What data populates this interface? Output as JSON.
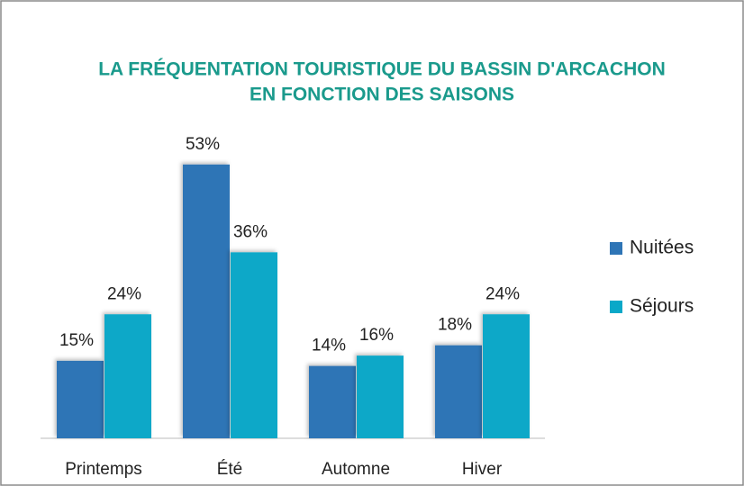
{
  "chart_data": {
    "type": "bar",
    "title": [
      "LA FRÉQUENTATION TOURISTIQUE DU BASSIN D'ARCACHON",
      "EN FONCTION DES SAISONS"
    ],
    "categories": [
      "Printemps",
      "Été",
      "Automne",
      "Hiver"
    ],
    "series": [
      {
        "name": "Nuitées",
        "color": "#2e75b6",
        "values": [
          15,
          53,
          14,
          18
        ],
        "value_labels": [
          "15%",
          "53%",
          "14%",
          "18%"
        ]
      },
      {
        "name": "Séjours",
        "color": "#0aa8c8",
        "values": [
          24,
          36,
          16,
          24
        ],
        "value_labels": [
          "24%",
          "36%",
          "16%",
          "24%"
        ]
      }
    ],
    "legend": "right"
  }
}
